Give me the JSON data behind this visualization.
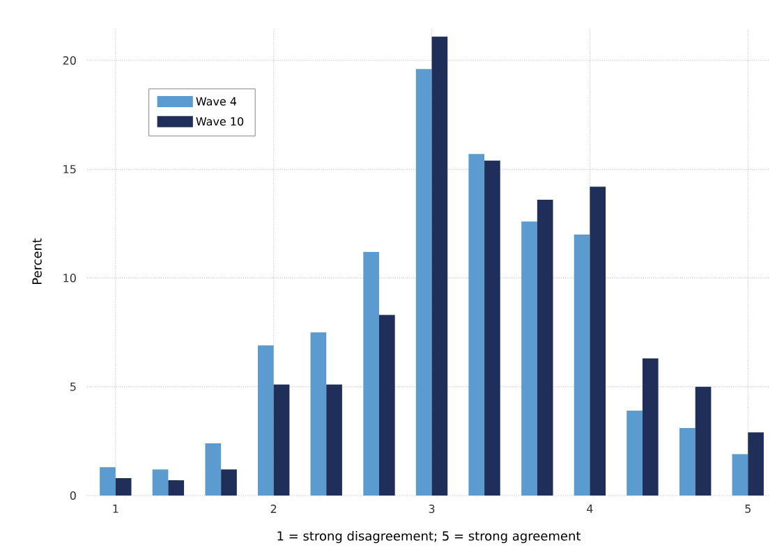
{
  "chart_data": {
    "type": "bar",
    "xlabel": "1 = strong disagreement; 5 = strong agreement",
    "ylabel": "Percent",
    "x": [
      1,
      1.333,
      1.667,
      2,
      2.333,
      2.667,
      3,
      3.333,
      3.667,
      4,
      4.333,
      4.667,
      5
    ],
    "series": [
      {
        "name": "Wave 4",
        "color": "#5b9bd0",
        "values": [
          1.3,
          1.2,
          2.4,
          6.9,
          7.5,
          11.2,
          19.6,
          15.7,
          12.6,
          12.0,
          3.9,
          3.1,
          1.9
        ]
      },
      {
        "name": "Wave 10",
        "color": "#202e5a",
        "values": [
          0.8,
          0.7,
          1.2,
          5.1,
          5.1,
          8.3,
          21.1,
          15.4,
          13.6,
          14.2,
          6.3,
          5.0,
          2.9
        ]
      }
    ],
    "xlim": [
      0.82,
      5.14
    ],
    "ylim": [
      0,
      21.5
    ],
    "xticks": [
      1,
      2,
      3,
      4,
      5
    ],
    "yticks": [
      0,
      5,
      10,
      15,
      20
    ],
    "grid": true,
    "legend": "top left"
  }
}
